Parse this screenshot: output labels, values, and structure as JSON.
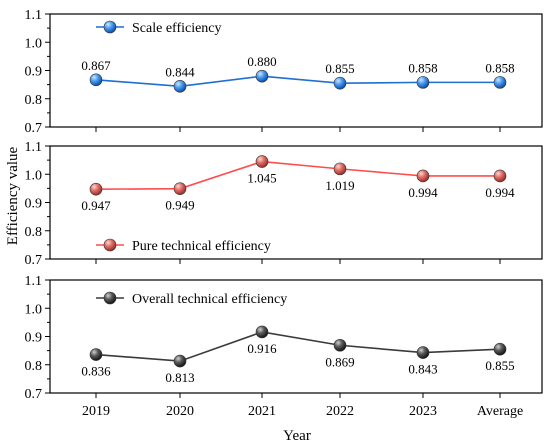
{
  "chart_data": {
    "type": "line",
    "xlabel": "Year",
    "ylabel": "Efficiency value",
    "categories": [
      "2019",
      "2020",
      "2021",
      "2022",
      "2023",
      "Average"
    ],
    "panels": [
      {
        "series": [
          {
            "name": "Scale efficiency",
            "values": [
              0.867,
              0.844,
              0.88,
              0.855,
              0.858,
              0.858
            ],
            "color": "#1f6fd1",
            "label_position": "above"
          }
        ],
        "ylim": [
          0.7,
          1.1
        ],
        "yticks": [
          "0.7",
          "0.8",
          "0.9",
          "1.0",
          "1.1"
        ],
        "legend_position": "top-left"
      },
      {
        "series": [
          {
            "name": "Pure technical efficiency",
            "values": [
              0.947,
              0.949,
              1.045,
              1.019,
              0.994,
              0.994
            ],
            "color": "#ff4d4d",
            "marker_color": "#e06060",
            "label_position": "below"
          }
        ],
        "ylim": [
          0.7,
          1.1
        ],
        "yticks": [
          "0.7",
          "0.8",
          "0.9",
          "1.0",
          "1.1"
        ],
        "legend_position": "bottom-left"
      },
      {
        "series": [
          {
            "name": "Overall technical efficiency",
            "values": [
              0.836,
              0.813,
              0.916,
              0.869,
              0.843,
              0.855
            ],
            "color": "#3a3a3a",
            "label_position": "below"
          }
        ],
        "ylim": [
          0.7,
          1.1
        ],
        "yticks": [
          "0.7",
          "0.8",
          "0.9",
          "1.0",
          "1.1"
        ],
        "legend_position": "top-left"
      }
    ],
    "value_labels": [
      [
        "0.867",
        "0.844",
        "0.880",
        "0.855",
        "0.858",
        "0.858"
      ],
      [
        "0.947",
        "0.949",
        "1.045",
        "1.019",
        "0.994",
        "0.994"
      ],
      [
        "0.836",
        "0.813",
        "0.916",
        "0.869",
        "0.843",
        "0.855"
      ]
    ]
  }
}
